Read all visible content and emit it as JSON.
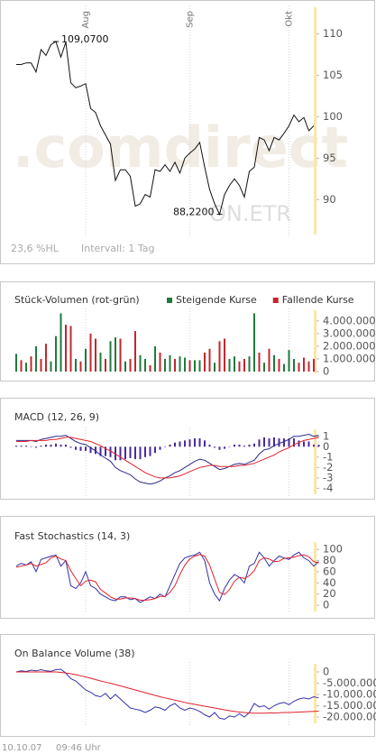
{
  "chart_data": [
    {
      "type": "line",
      "xlim": [
        0,
        60
      ],
      "xticks": [
        {
          "value": 14,
          "label": "Aug"
        },
        {
          "value": 35,
          "label": "Sep"
        },
        {
          "value": 55,
          "label": "Okt"
        }
      ],
      "ylim": [
        86,
        113
      ],
      "yticks": [
        90,
        95,
        100,
        105,
        110
      ],
      "grid": true,
      "watermark": ".comdirect",
      "exchange": "ON.ETR",
      "range_label": "23,6 %HL",
      "interval_label": "Intervall: 1 Tag",
      "annotations": [
        {
          "x": 8,
          "value": 109.07,
          "label": "109,0700"
        },
        {
          "x": 41,
          "value": 88.22,
          "label": "88,2200"
        }
      ],
      "series": [
        {
          "color": "#111111",
          "values": [
            106.3,
            106.3,
            106.5,
            106.5,
            105.4,
            108.1,
            107.4,
            108.7,
            109.07,
            107.2,
            109.0,
            104.1,
            103.5,
            103.7,
            104.0,
            101.0,
            100.5,
            98.9,
            97.8,
            96.7,
            92.3,
            93.6,
            93.6,
            92.8,
            89.2,
            89.5,
            90.6,
            90.3,
            93.6,
            93.4,
            94.2,
            93.4,
            94.5,
            93.2,
            95.0,
            95.6,
            96.1,
            96.9,
            93.9,
            91.2,
            89.5,
            88.22,
            90.6,
            91.7,
            92.5,
            91.7,
            90.3,
            93.4,
            93.9,
            97.5,
            97.2,
            95.9,
            97.5,
            97.2,
            98.0,
            98.9,
            100.2,
            99.4,
            99.9,
            98.3,
            98.9
          ]
        }
      ]
    },
    {
      "type": "bar",
      "title": "Stück-Volumen (rot-grün)",
      "xlim": [
        0,
        60
      ],
      "ylim": [
        0,
        4700000
      ],
      "yticks": [
        0,
        {
          "value": 1000000,
          "label": "1.000.000"
        },
        {
          "value": 2000000,
          "label": "2.000.000"
        },
        {
          "value": 3000000,
          "label": "3.000.000"
        },
        {
          "value": 4000000,
          "label": "4.000.000"
        }
      ],
      "series": [
        {
          "name": "Steigende Kurse",
          "color": "#1f7a3c",
          "values": [
            1400000,
            null,
            700000,
            null,
            2000000,
            null,
            null,
            800000,
            2800000,
            4600000,
            null,
            null,
            1000000,
            null,
            1800000,
            null,
            null,
            1500000,
            null,
            2400000,
            2700000,
            null,
            800000,
            null,
            null,
            1300000,
            1000000,
            null,
            2000000,
            null,
            1000000,
            1300000,
            null,
            1200000,
            1100000,
            null,
            900000,
            900000,
            null,
            null,
            700000,
            null,
            null,
            1000000,
            1200000,
            null,
            null,
            1200000,
            4600000,
            null,
            700000,
            null,
            1300000,
            null,
            600000,
            1700000,
            1000000,
            null,
            null,
            null,
            null
          ]
        },
        {
          "name": "Fallende Kurse",
          "color": "#c4262e",
          "values": [
            null,
            900000,
            null,
            1200000,
            null,
            1000000,
            2200000,
            null,
            null,
            null,
            3700000,
            3600000,
            null,
            800000,
            null,
            3000000,
            2600000,
            null,
            1000000,
            null,
            null,
            2600000,
            null,
            1000000,
            3200000,
            null,
            null,
            500000,
            null,
            1500000,
            null,
            null,
            1000000,
            null,
            null,
            900000,
            null,
            null,
            1500000,
            1800000,
            null,
            2400000,
            2600000,
            null,
            null,
            800000,
            1000000,
            null,
            null,
            1500000,
            null,
            1800000,
            null,
            1000000,
            null,
            null,
            null,
            700000,
            1100000,
            800000,
            1000000
          ]
        }
      ]
    },
    {
      "type": "combo",
      "title": "MACD (12, 26, 9)",
      "xlim": [
        0,
        60
      ],
      "ylim": [
        -4.4,
        1.5
      ],
      "yticks": [
        1,
        0,
        -1,
        -2,
        -3,
        -4
      ],
      "series": [
        {
          "type": "bar",
          "color": "#4a2a9a",
          "values": [
            0.1,
            0.1,
            0.1,
            0.0,
            -0.1,
            0.1,
            0.2,
            0.2,
            0.3,
            0.2,
            0.2,
            -0.1,
            -0.3,
            -0.4,
            -0.4,
            -0.6,
            -0.7,
            -0.9,
            -0.9,
            -1.0,
            -1.3,
            -1.3,
            -1.2,
            -1.1,
            -1.2,
            -1.2,
            -1.0,
            -0.9,
            -0.6,
            -0.3,
            0.0,
            0.2,
            0.4,
            0.5,
            0.6,
            0.7,
            0.8,
            0.8,
            0.6,
            0.2,
            -0.1,
            -0.3,
            -0.2,
            0.0,
            0.2,
            0.2,
            0.1,
            0.2,
            0.3,
            0.7,
            0.9,
            0.8,
            0.9,
            0.8,
            0.8,
            0.8,
            0.8,
            0.6,
            0.5,
            0.5,
            0.2,
            0.2
          ]
        },
        {
          "type": "line",
          "color": "#2b2b8c",
          "values": [
            0.6,
            0.6,
            0.6,
            0.6,
            0.5,
            0.7,
            0.8,
            0.9,
            1.0,
            1.0,
            1.1,
            0.8,
            0.5,
            0.3,
            0.2,
            -0.1,
            -0.4,
            -0.8,
            -1.1,
            -1.4,
            -2.0,
            -2.3,
            -2.5,
            -2.7,
            -3.1,
            -3.4,
            -3.5,
            -3.6,
            -3.5,
            -3.3,
            -3.0,
            -2.8,
            -2.5,
            -2.3,
            -2.0,
            -1.7,
            -1.4,
            -1.2,
            -1.3,
            -1.6,
            -1.9,
            -2.2,
            -2.1,
            -1.9,
            -1.7,
            -1.6,
            -1.7,
            -1.5,
            -1.3,
            -0.7,
            -0.3,
            -0.2,
            0.1,
            0.3,
            0.5,
            0.7,
            1.0,
            1.0,
            1.1,
            1.2,
            1.0,
            1.1
          ]
        },
        {
          "type": "line",
          "color": "#e0222b",
          "values": [
            0.5,
            0.5,
            0.5,
            0.6,
            0.6,
            0.6,
            0.6,
            0.7,
            0.7,
            0.8,
            0.9,
            0.9,
            0.8,
            0.7,
            0.6,
            0.5,
            0.3,
            0.1,
            -0.2,
            -0.4,
            -0.7,
            -1.0,
            -1.3,
            -1.6,
            -1.9,
            -2.2,
            -2.5,
            -2.7,
            -2.9,
            -3.0,
            -3.0,
            -3.0,
            -2.9,
            -2.8,
            -2.6,
            -2.4,
            -2.2,
            -2.0,
            -1.9,
            -1.8,
            -1.8,
            -1.9,
            -1.9,
            -1.9,
            -1.9,
            -1.8,
            -1.8,
            -1.7,
            -1.6,
            -1.4,
            -1.2,
            -1.0,
            -0.8,
            -0.5,
            -0.3,
            -0.1,
            0.2,
            0.4,
            0.6,
            0.7,
            0.8,
            0.9
          ]
        }
      ]
    },
    {
      "type": "line",
      "title": "Fast Stochastics (14, 3)",
      "xlim": [
        0,
        60
      ],
      "ylim": [
        -8,
        110
      ],
      "yticks": [
        100,
        80,
        60,
        40,
        20,
        0
      ],
      "series": [
        {
          "color": "#3333aa",
          "values": [
            70,
            75,
            72,
            78,
            60,
            82,
            85,
            88,
            90,
            70,
            80,
            35,
            30,
            40,
            60,
            35,
            30,
            20,
            15,
            10,
            8,
            15,
            15,
            10,
            12,
            5,
            10,
            15,
            12,
            20,
            15,
            35,
            55,
            75,
            85,
            88,
            90,
            95,
            80,
            40,
            20,
            8,
            30,
            45,
            55,
            50,
            40,
            70,
            75,
            95,
            85,
            70,
            80,
            88,
            85,
            82,
            90,
            95,
            85,
            80,
            70,
            78
          ]
        },
        {
          "color": "#e0222b",
          "values": [
            68,
            70,
            72,
            75,
            70,
            73,
            76,
            85,
            88,
            83,
            80,
            62,
            48,
            35,
            43,
            45,
            42,
            28,
            22,
            15,
            11,
            11,
            13,
            13,
            12,
            9,
            9,
            10,
            12,
            16,
            16,
            23,
            35,
            55,
            72,
            83,
            88,
            91,
            88,
            72,
            47,
            23,
            19,
            28,
            43,
            50,
            48,
            53,
            62,
            80,
            85,
            83,
            78,
            79,
            84,
            85,
            86,
            89,
            90,
            87,
            78,
            76
          ]
        }
      ]
    },
    {
      "type": "line",
      "title": "On Balance Volume (38)",
      "xlim": [
        0,
        60
      ],
      "ylim": [
        -22000000,
        2800000
      ],
      "yticks": [
        0,
        {
          "value": -5000000,
          "label": "-5.000.000"
        },
        {
          "value": -10000000,
          "label": "-10.000.000"
        },
        {
          "value": -15000000,
          "label": "-15.000.000"
        },
        {
          "value": -20000000,
          "label": "-20.000.000"
        }
      ],
      "series": [
        {
          "color": "#3333aa",
          "values": [
            0,
            500000,
            200000,
            800000,
            500000,
            1000000,
            500000,
            300000,
            1000000,
            1200000,
            -500000,
            -3000000,
            -4000000,
            -6000000,
            -8000000,
            -9000000,
            -10500000,
            -11000000,
            -9500000,
            -12000000,
            -10000000,
            -12000000,
            -14000000,
            -16000000,
            -16500000,
            -17000000,
            -18000000,
            -17000000,
            -15500000,
            -16000000,
            -17000000,
            -15000000,
            -14000000,
            -16000000,
            -17000000,
            -16000000,
            -16500000,
            -17500000,
            -19000000,
            -20000000,
            -18000000,
            -20500000,
            -21000000,
            -19500000,
            -20000000,
            -18500000,
            -20000000,
            -18000000,
            -14000000,
            -15500000,
            -15000000,
            -16500000,
            -15000000,
            -14000000,
            -13500000,
            -14500000,
            -13000000,
            -12000000,
            -11500000,
            -12000000,
            -11000000,
            -11500000
          ]
        },
        {
          "color": "#e0222b",
          "values": [
            0,
            0,
            0,
            0,
            0,
            0,
            0,
            0,
            0,
            -200000,
            -500000,
            -800000,
            -1200000,
            -1700000,
            -2200000,
            -2800000,
            -3400000,
            -4000000,
            -4500000,
            -5000000,
            -5600000,
            -6200000,
            -6800000,
            -7400000,
            -8000000,
            -8600000,
            -9200000,
            -9800000,
            -10400000,
            -11000000,
            -11500000,
            -12000000,
            -12500000,
            -13000000,
            -13500000,
            -14000000,
            -14400000,
            -14800000,
            -15200000,
            -15600000,
            -16000000,
            -16400000,
            -16800000,
            -17200000,
            -17500000,
            -17800000,
            -18000000,
            -18200000,
            -18300000,
            -18300000,
            -18300000,
            -18200000,
            -18200000,
            -18100000,
            -18000000,
            -18000000,
            -17900000,
            -17800000,
            -17700000,
            -17600000,
            -17500000,
            -17400000
          ]
        }
      ]
    }
  ],
  "footer": {
    "date": "10.10.07",
    "time": "09:46 Uhr"
  }
}
